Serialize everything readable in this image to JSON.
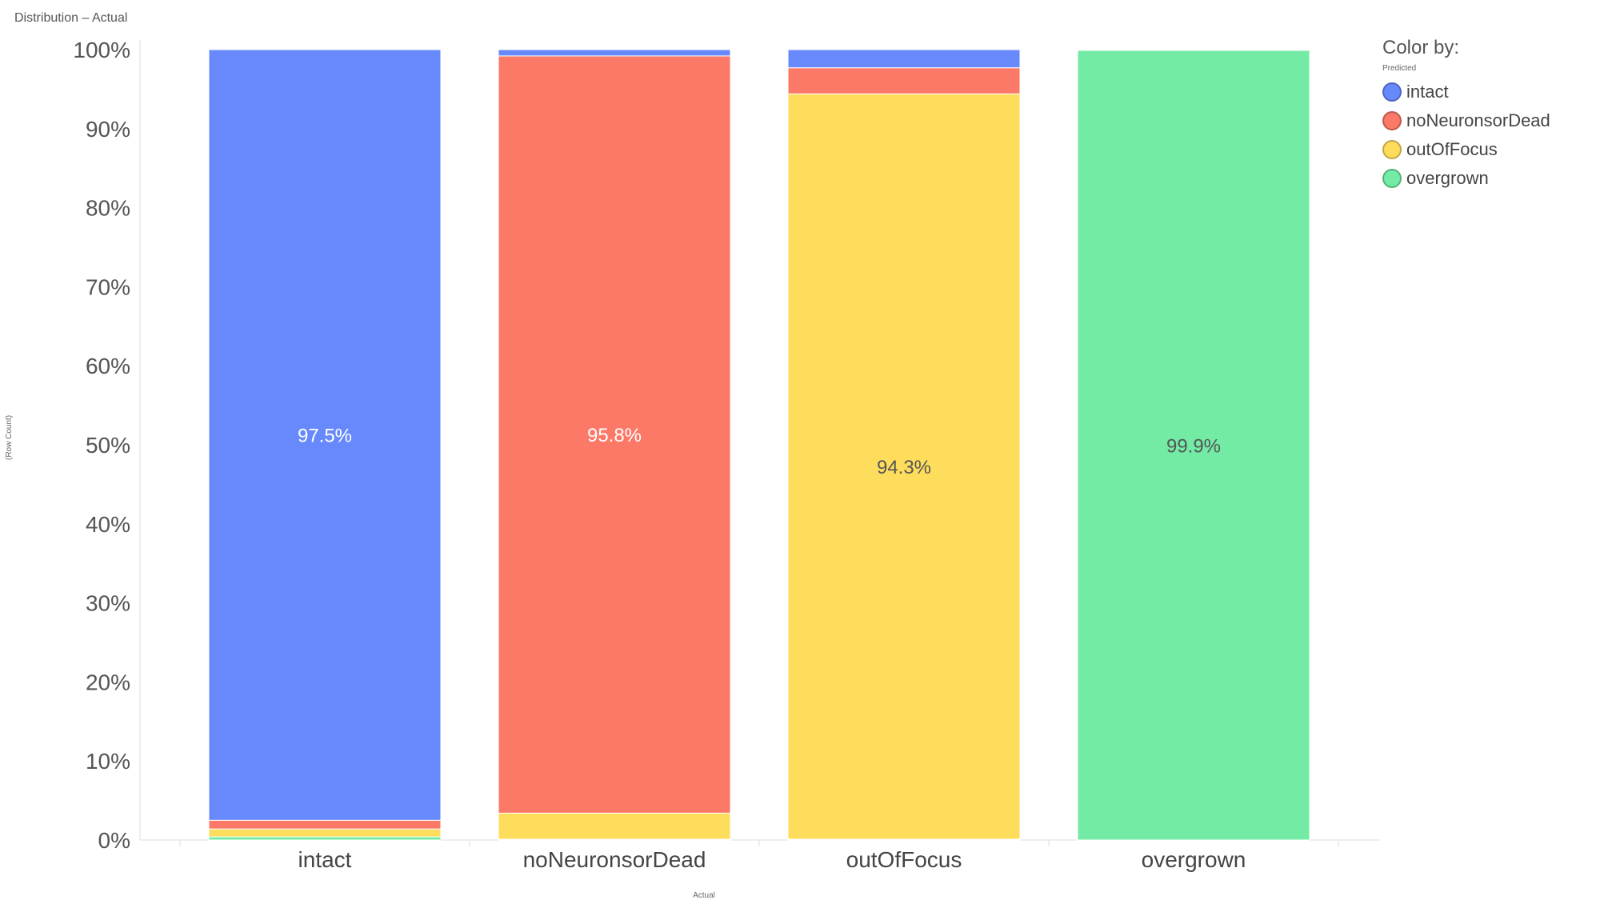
{
  "title": "Distribution – Actual",
  "chart_data": {
    "type": "bar",
    "stacked": true,
    "normalized": true,
    "categories": [
      "intact",
      "noNeuronsorDead",
      "outOfFocus",
      "overgrown"
    ],
    "series": [
      {
        "name": "overgrown",
        "color": "#73EBA5",
        "values": [
          0.4,
          0.1,
          0.1,
          99.9
        ]
      },
      {
        "name": "outOfFocus",
        "color": "#FFDD5C",
        "values": [
          1.0,
          3.3,
          94.3,
          0.0
        ]
      },
      {
        "name": "noNeuronsorDead",
        "color": "#FC7867",
        "values": [
          1.1,
          95.8,
          3.3,
          0.05
        ]
      },
      {
        "name": "intact",
        "color": "#6789FC",
        "values": [
          97.5,
          0.8,
          2.3,
          0.05
        ]
      }
    ],
    "data_labels": [
      {
        "category": "intact",
        "series": "intact",
        "text": "97.5%",
        "color": "#ffffff"
      },
      {
        "category": "noNeuronsorDead",
        "series": "noNeuronsorDead",
        "text": "95.8%",
        "color": "#ffffff"
      },
      {
        "category": "outOfFocus",
        "series": "outOfFocus",
        "text": "94.3%",
        "color": "#555555"
      },
      {
        "category": "overgrown",
        "series": "overgrown",
        "text": "99.9%",
        "color": "#555555"
      }
    ],
    "yticks": [
      "0%",
      "10%",
      "20%",
      "30%",
      "40%",
      "50%",
      "60%",
      "70%",
      "80%",
      "90%",
      "100%"
    ],
    "ylim": [
      0,
      100
    ],
    "xlabel": "Actual",
    "ylabel": "(Row Count)",
    "grid": false,
    "legend_position": "top-right"
  },
  "legend": {
    "title": "Color by:",
    "subtitle": "Predicted",
    "items": [
      {
        "label": "intact",
        "color": "#6789FC"
      },
      {
        "label": "noNeuronsorDead",
        "color": "#FC7867"
      },
      {
        "label": "outOfFocus",
        "color": "#FFDD5C"
      },
      {
        "label": "overgrown",
        "color": "#73EBA5"
      }
    ]
  }
}
